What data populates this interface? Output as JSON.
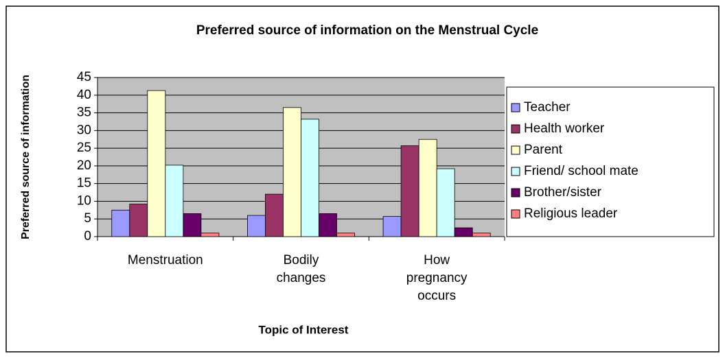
{
  "chart_data": {
    "type": "bar",
    "title": "Preferred source of information on the Menstrual Cycle",
    "y_label": "Preferred source of information",
    "x_label": "Topic of Interest",
    "categories": [
      "Menstruation",
      "Bodily changes",
      "How pregnancy occurs"
    ],
    "series": [
      {
        "name": "Teacher",
        "color": "#9999ff",
        "values": [
          7.5,
          6,
          5.7
        ]
      },
      {
        "name": "Health worker",
        "color": "#993366",
        "values": [
          9.2,
          12,
          25.7
        ]
      },
      {
        "name": "Parent",
        "color": "#ffffcc",
        "values": [
          41.3,
          36.5,
          27.5
        ]
      },
      {
        "name": "Friend/ school mate",
        "color": "#ccffff",
        "values": [
          20.2,
          33.2,
          19.2
        ]
      },
      {
        "name": "Brother/sister",
        "color": "#660066",
        "values": [
          6.5,
          6.5,
          2.5
        ]
      },
      {
        "name": "Religious leader",
        "color": "#ff8080",
        "values": [
          1,
          1,
          1
        ]
      }
    ],
    "ylim": [
      0,
      45
    ],
    "yticks": [
      0,
      5,
      10,
      15,
      20,
      25,
      30,
      35,
      40,
      45
    ],
    "grid": true,
    "legend": "right"
  }
}
